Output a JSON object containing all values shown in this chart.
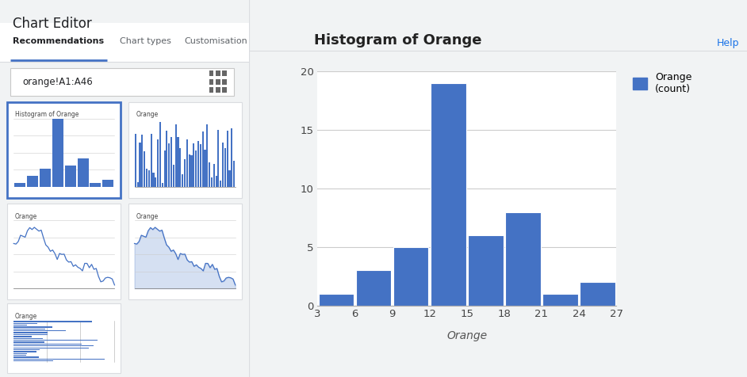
{
  "title": "Histogram of Orange",
  "xlabel": "Orange",
  "bar_color": "#4472C4",
  "bar_edge_color": "white",
  "bins": [
    3,
    6,
    9,
    12,
    15,
    18,
    21,
    24,
    27
  ],
  "counts": [
    1,
    3,
    5,
    19,
    6,
    8,
    1,
    2
  ],
  "xticks": [
    3,
    6,
    9,
    12,
    15,
    18,
    21,
    24,
    27
  ],
  "yticks": [
    0,
    5,
    10,
    15,
    20
  ],
  "ylim": [
    0,
    20
  ],
  "legend_label": "Orange\n(count)",
  "bg_color": "#ffffff",
  "grid_color": "#cccccc",
  "tab_active": "Recommendations",
  "tabs": [
    "Recommendations",
    "Chart types",
    "Customisation"
  ],
  "data_range": "orange!A1:A46",
  "help_text": "Help",
  "chart_editor_title": "Chart Editor",
  "left_panel_bg": "#f1f3f4",
  "right_panel_bg": "#ffffff",
  "tab_border_color": "#dadce0",
  "active_tab_color": "#4472C4",
  "input_border_color": "#dadce0"
}
